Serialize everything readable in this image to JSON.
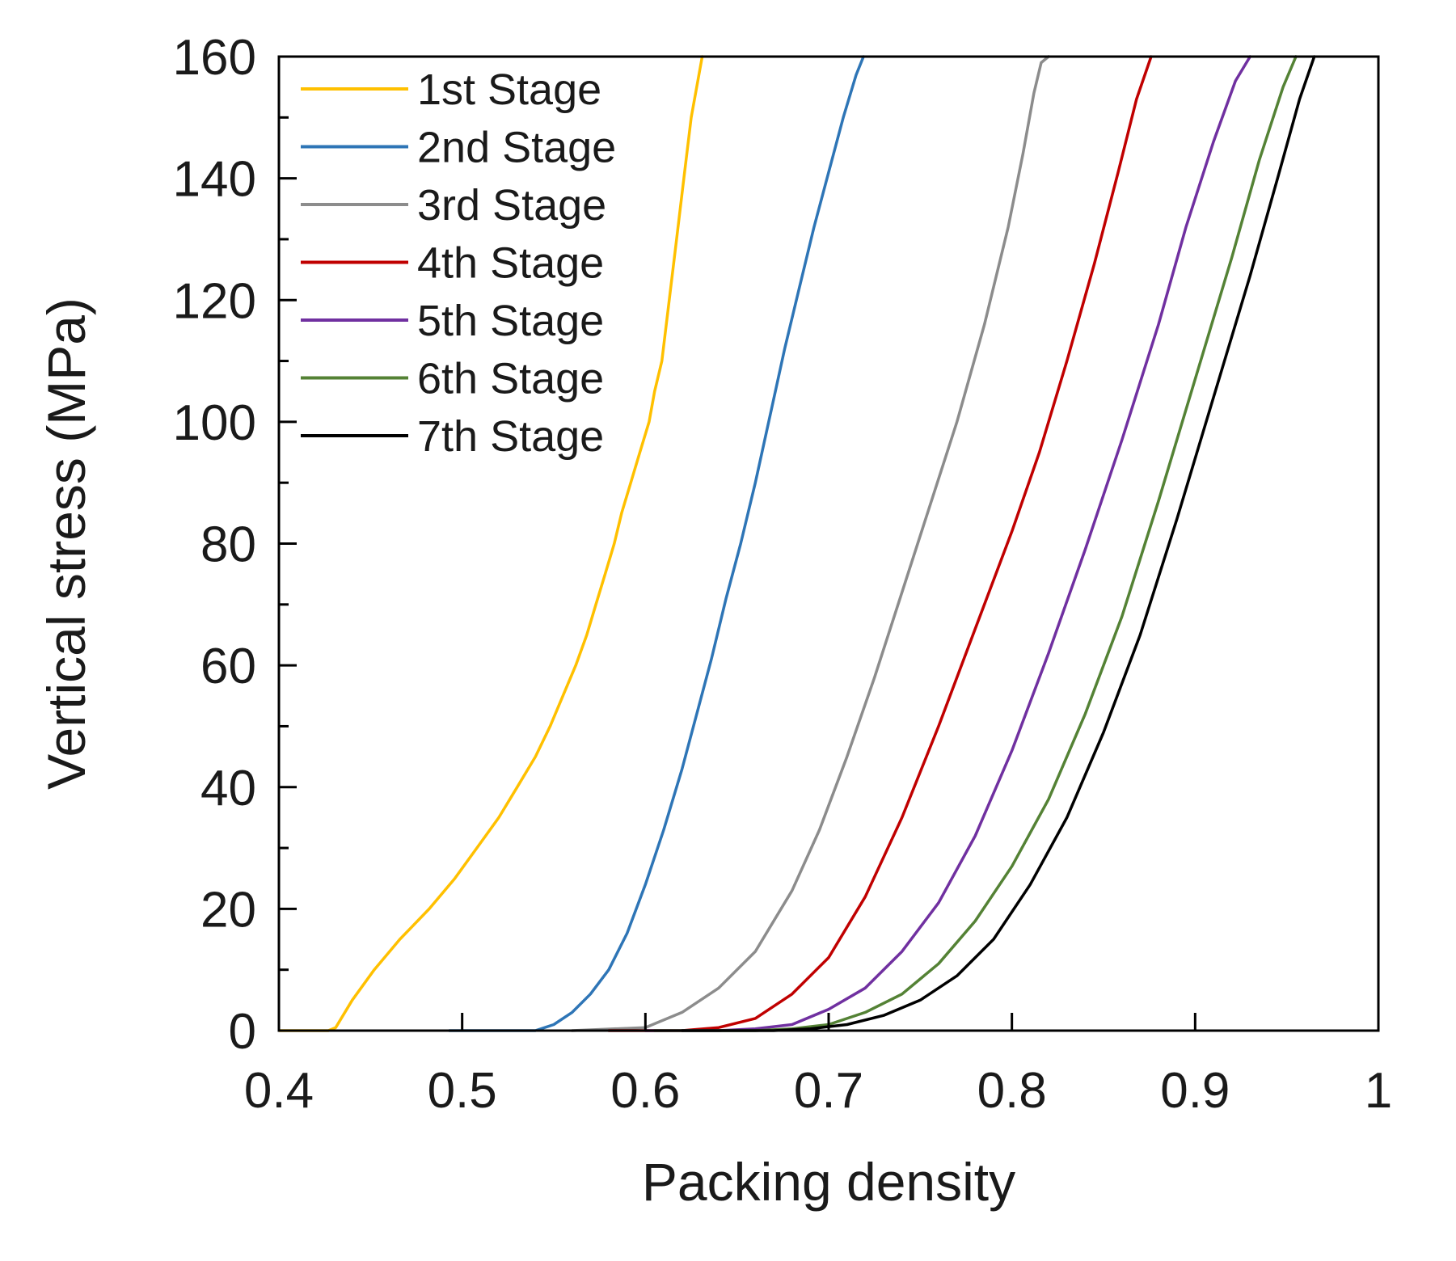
{
  "chart_data": {
    "type": "line",
    "title": "",
    "xlabel": "Packing density",
    "ylabel": "Vertical stress (MPa)",
    "xlim": [
      0.4,
      1
    ],
    "ylim": [
      0,
      160
    ],
    "xticks": [
      0.4,
      0.5,
      0.6,
      0.7,
      0.8,
      0.9,
      1
    ],
    "xtick_labels": [
      "0.4",
      "0.5",
      "0.6",
      "0.7",
      "0.8",
      "0.9",
      "1"
    ],
    "yticks": [
      0,
      20,
      40,
      60,
      80,
      100,
      120,
      140,
      160
    ],
    "ytick_labels": [
      "0",
      "20",
      "40",
      "60",
      "80",
      "100",
      "120",
      "140",
      "160"
    ],
    "grid": false,
    "legend_position": "top-left",
    "series": [
      {
        "name": "1st Stage",
        "color": "#FFC000",
        "points": [
          [
            0.4,
            0
          ],
          [
            0.427,
            0
          ],
          [
            0.431,
            0.5
          ],
          [
            0.44,
            5
          ],
          [
            0.452,
            10
          ],
          [
            0.466,
            15
          ],
          [
            0.482,
            20
          ],
          [
            0.496,
            25
          ],
          [
            0.508,
            30
          ],
          [
            0.52,
            35
          ],
          [
            0.53,
            40
          ],
          [
            0.54,
            45
          ],
          [
            0.548,
            50
          ],
          [
            0.555,
            55
          ],
          [
            0.562,
            60
          ],
          [
            0.568,
            65
          ],
          [
            0.573,
            70
          ],
          [
            0.578,
            75
          ],
          [
            0.583,
            80
          ],
          [
            0.587,
            85
          ],
          [
            0.592,
            90
          ],
          [
            0.597,
            95
          ],
          [
            0.602,
            100
          ],
          [
            0.605,
            105
          ],
          [
            0.609,
            110
          ],
          [
            0.613,
            120
          ],
          [
            0.617,
            130
          ],
          [
            0.621,
            140
          ],
          [
            0.625,
            150
          ],
          [
            0.628,
            155
          ],
          [
            0.631,
            160
          ]
        ]
      },
      {
        "name": "2nd Stage",
        "color": "#2E75B6",
        "points": [
          [
            0.493,
            0
          ],
          [
            0.54,
            0
          ],
          [
            0.55,
            1
          ],
          [
            0.56,
            3
          ],
          [
            0.57,
            6
          ],
          [
            0.58,
            10
          ],
          [
            0.59,
            16
          ],
          [
            0.6,
            24
          ],
          [
            0.61,
            33
          ],
          [
            0.62,
            43
          ],
          [
            0.628,
            52
          ],
          [
            0.636,
            61
          ],
          [
            0.644,
            71
          ],
          [
            0.652,
            80
          ],
          [
            0.66,
            90
          ],
          [
            0.668,
            101
          ],
          [
            0.676,
            112
          ],
          [
            0.684,
            122
          ],
          [
            0.692,
            132
          ],
          [
            0.7,
            141
          ],
          [
            0.708,
            150
          ],
          [
            0.715,
            157
          ],
          [
            0.719,
            160
          ]
        ]
      },
      {
        "name": "3rd Stage",
        "color": "#8C8C8C",
        "points": [
          [
            0.56,
            0
          ],
          [
            0.6,
            0.5
          ],
          [
            0.62,
            3
          ],
          [
            0.64,
            7
          ],
          [
            0.66,
            13
          ],
          [
            0.68,
            23
          ],
          [
            0.695,
            33
          ],
          [
            0.71,
            45
          ],
          [
            0.725,
            58
          ],
          [
            0.74,
            72
          ],
          [
            0.755,
            86
          ],
          [
            0.77,
            100
          ],
          [
            0.785,
            116
          ],
          [
            0.798,
            132
          ],
          [
            0.806,
            144
          ],
          [
            0.812,
            154
          ],
          [
            0.816,
            159
          ],
          [
            0.82,
            160
          ]
        ]
      },
      {
        "name": "4th Stage",
        "color": "#C00000",
        "points": [
          [
            0.58,
            0
          ],
          [
            0.62,
            0
          ],
          [
            0.64,
            0.5
          ],
          [
            0.66,
            2
          ],
          [
            0.68,
            6
          ],
          [
            0.7,
            12
          ],
          [
            0.72,
            22
          ],
          [
            0.74,
            35
          ],
          [
            0.76,
            50
          ],
          [
            0.78,
            66
          ],
          [
            0.8,
            82
          ],
          [
            0.815,
            95
          ],
          [
            0.83,
            110
          ],
          [
            0.845,
            126
          ],
          [
            0.858,
            141
          ],
          [
            0.868,
            153
          ],
          [
            0.876,
            160
          ]
        ]
      },
      {
        "name": "5th Stage",
        "color": "#7030A0",
        "points": [
          [
            0.6,
            0
          ],
          [
            0.64,
            0
          ],
          [
            0.66,
            0.3
          ],
          [
            0.68,
            1
          ],
          [
            0.7,
            3.5
          ],
          [
            0.72,
            7
          ],
          [
            0.74,
            13
          ],
          [
            0.76,
            21
          ],
          [
            0.78,
            32
          ],
          [
            0.8,
            46
          ],
          [
            0.82,
            62
          ],
          [
            0.84,
            79
          ],
          [
            0.86,
            97
          ],
          [
            0.88,
            116
          ],
          [
            0.895,
            132
          ],
          [
            0.91,
            146
          ],
          [
            0.922,
            156
          ],
          [
            0.93,
            160
          ]
        ]
      },
      {
        "name": "6th Stage",
        "color": "#548235",
        "points": [
          [
            0.605,
            0
          ],
          [
            0.66,
            0
          ],
          [
            0.68,
            0.3
          ],
          [
            0.7,
            1
          ],
          [
            0.72,
            3
          ],
          [
            0.74,
            6
          ],
          [
            0.76,
            11
          ],
          [
            0.78,
            18
          ],
          [
            0.8,
            27
          ],
          [
            0.82,
            38
          ],
          [
            0.84,
            52
          ],
          [
            0.86,
            68
          ],
          [
            0.88,
            87
          ],
          [
            0.9,
            107
          ],
          [
            0.92,
            127
          ],
          [
            0.935,
            143
          ],
          [
            0.948,
            155
          ],
          [
            0.955,
            160
          ]
        ]
      },
      {
        "name": "7th Stage",
        "color": "#000000",
        "points": [
          [
            0.62,
            0
          ],
          [
            0.67,
            0
          ],
          [
            0.69,
            0.3
          ],
          [
            0.71,
            1
          ],
          [
            0.73,
            2.5
          ],
          [
            0.75,
            5
          ],
          [
            0.77,
            9
          ],
          [
            0.79,
            15
          ],
          [
            0.81,
            24
          ],
          [
            0.83,
            35
          ],
          [
            0.85,
            49
          ],
          [
            0.87,
            65
          ],
          [
            0.89,
            84
          ],
          [
            0.91,
            104
          ],
          [
            0.93,
            124
          ],
          [
            0.945,
            140
          ],
          [
            0.957,
            153
          ],
          [
            0.965,
            160
          ]
        ]
      }
    ]
  }
}
